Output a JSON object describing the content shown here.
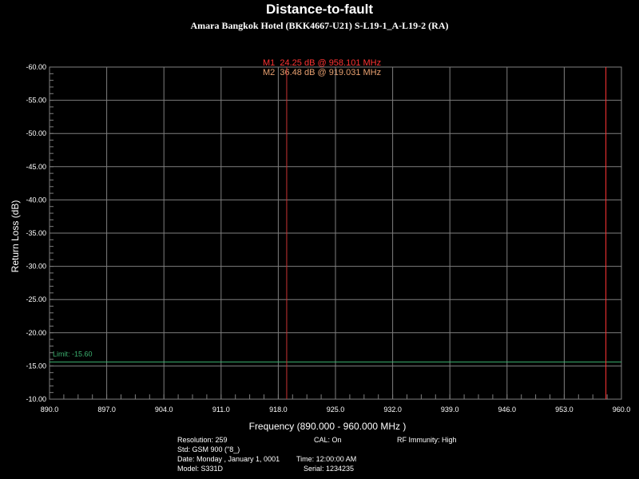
{
  "colors": {
    "background": "#000000",
    "grid": "#7f7f7f",
    "marker_m1": "#ff3333",
    "marker_m2": "#c83232",
    "marker_m2_text": "#e8a070",
    "limit": "#3cb371",
    "text": "#ffffff"
  },
  "markers": [
    {
      "label": "M1  24.25 dB @ 958.101 MHz",
      "x": 958.101,
      "y": 24.25
    },
    {
      "label": "M2  36.48 dB @ 919.031 MHz",
      "x": 919.031,
      "y": 36.48
    }
  ],
  "limit": {
    "label": "Limit: -15.60",
    "value": -15.6
  },
  "chart_data": {
    "type": "line",
    "title": "Distance-to-fault",
    "subtitle": "Amara Bangkok Hotel (BKK4667-U21) S-L19-1_A-L19-2 (RA)",
    "xlabel": "Frequency (890.000 - 960.000 MHz )",
    "ylabel": "Return Loss (dB)",
    "xlim": [
      890.0,
      960.0
    ],
    "ylim": [
      -10.0,
      -60.0
    ],
    "x_ticks": [
      "890.0",
      "897.0",
      "904.0",
      "911.0",
      "918.0",
      "925.0",
      "932.0",
      "939.0",
      "946.0",
      "953.0",
      "960.0"
    ],
    "y_ticks": [
      "-60.00",
      "-55.00",
      "-50.00",
      "-45.00",
      "-40.00",
      "-35.00",
      "-30.00",
      "-25.00",
      "-20.00",
      "-15.00",
      "-10.00"
    ],
    "grid": true,
    "series": []
  },
  "info": {
    "resolution": "Resolution: 259",
    "cal": "CAL: On",
    "rf_immunity": "RF Immunity: High",
    "std": "Std: GSM 900 (\"8_)",
    "date": "Date: Monday , January 1, 0001",
    "time": "Time: 12:00:00 AM",
    "model": "Model: S331D",
    "serial": "Serial: 1234235"
  }
}
